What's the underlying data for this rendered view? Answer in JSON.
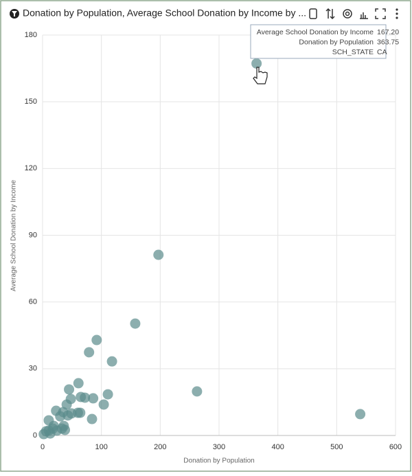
{
  "header": {
    "title": "Donation by Population, Average School Donation by Income by ..."
  },
  "chart_data": {
    "type": "scatter",
    "x_label": "Donation by Population",
    "y_label": "Average School Donation by Income",
    "x": [
      363.75,
      197,
      157.5,
      92,
      79,
      118,
      262.5,
      540,
      61,
      45,
      111,
      65,
      72,
      86,
      48,
      41,
      104,
      23,
      35,
      49,
      60,
      64,
      30,
      43,
      10.5,
      84,
      19,
      33,
      38,
      24.5,
      6,
      13,
      10.5,
      17.5,
      36,
      2
    ],
    "y": [
      167.2,
      81.2,
      50.3,
      42.9,
      37.4,
      33.3,
      19.8,
      9.6,
      23.5,
      20.7,
      18.5,
      17.3,
      17,
      16.7,
      16.4,
      13.9,
      13.9,
      11.1,
      10.5,
      9.9,
      10.2,
      10.2,
      8.6,
      9,
      6.8,
      7.4,
      4.3,
      3.1,
      2.5,
      2.2,
      1.9,
      0.9,
      2.2,
      3.1,
      4.3,
      0.6
    ],
    "color": "#5b8b8b",
    "xlim": [
      0,
      600
    ],
    "ylim": [
      0,
      180
    ],
    "xticks": [
      0,
      100,
      200,
      300,
      400,
      500,
      600
    ],
    "yticks": [
      0,
      30,
      60,
      90,
      120,
      150,
      180
    ],
    "grid": true
  },
  "tooltip": {
    "rows": [
      {
        "label": "Average School Donation by Income",
        "value": "167.20"
      },
      {
        "label": "Donation by Population",
        "value": "363.75"
      },
      {
        "label": "SCH_STATE",
        "value": "CA"
      }
    ]
  }
}
